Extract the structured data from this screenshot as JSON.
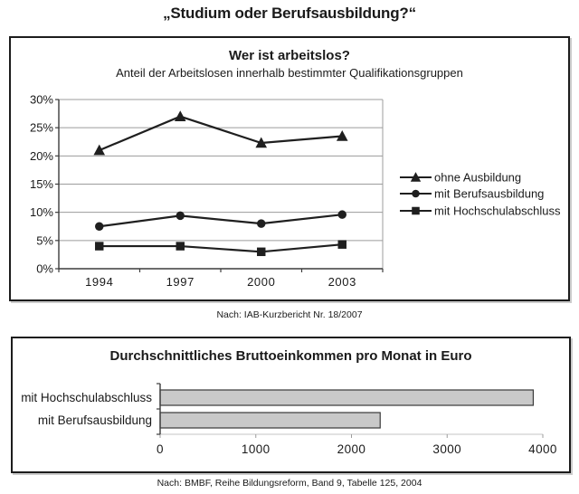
{
  "page": {
    "title": "„Studium oder Berufsausbildung?“"
  },
  "colors": {
    "text": "#1a1a1a",
    "series": "#1f1f1f",
    "grid": "#9c9c9c",
    "axis": "#3c3c3c",
    "axis_light": "#c4c4c4",
    "bar_fill": "#c9c9c9",
    "bar_border": "#3a3a3a",
    "panel_border": "#1c1c1c"
  },
  "chart_data": [
    {
      "type": "line",
      "title": "Wer ist arbeitslos?",
      "subtitle": "Anteil der Arbeitslosen innerhalb bestimmter Qualifikationsgruppen",
      "categories": [
        "1994",
        "1997",
        "2000",
        "2003"
      ],
      "series": [
        {
          "name": "ohne Ausbildung",
          "marker": "triangle",
          "values": [
            21,
            27,
            22.3,
            23.5
          ]
        },
        {
          "name": "mit Berufsausbildung",
          "marker": "circle",
          "values": [
            7.5,
            9.4,
            8,
            9.6
          ]
        },
        {
          "name": "mit Hochschulabschluss",
          "marker": "square",
          "values": [
            4,
            4,
            3,
            4.3
          ]
        }
      ],
      "ylim": [
        0,
        30
      ],
      "y_ticks": [
        {
          "value": 0,
          "label": "0%"
        },
        {
          "value": 5,
          "label": "5%"
        },
        {
          "value": 10,
          "label": "10%"
        },
        {
          "value": 15,
          "label": "15%"
        },
        {
          "value": 20,
          "label": "20%"
        },
        {
          "value": 25,
          "label": "25%"
        },
        {
          "value": 30,
          "label": "30%"
        }
      ],
      "grid": true,
      "legend_position": "right",
      "source": "Nach: IAB-Kurzbericht Nr. 18/2007"
    },
    {
      "type": "bar",
      "orientation": "horizontal",
      "title": "Durchschnittliches Bruttoeinkommen pro Monat in Euro",
      "categories": [
        "mit Hochschulabschluss",
        "mit Berufsausbildung"
      ],
      "values": [
        3900,
        2300
      ],
      "xlim": [
        0,
        4000
      ],
      "x_ticks": [
        0,
        1000,
        2000,
        3000,
        4000
      ],
      "grid": false,
      "source": "Nach: BMBF, Reihe Bildungsreform, Band 9, Tabelle 125, 2004"
    }
  ]
}
